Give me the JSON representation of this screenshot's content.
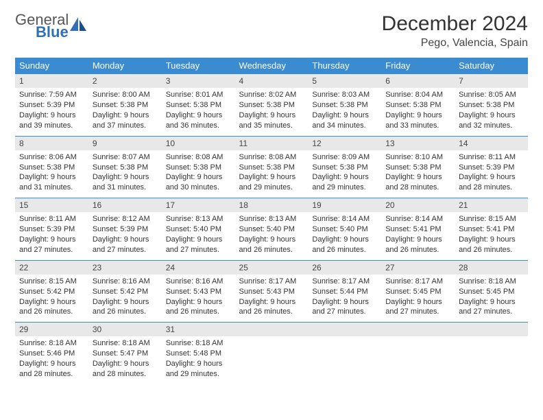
{
  "logo": {
    "general": "General",
    "blue": "Blue"
  },
  "title": "December 2024",
  "location": "Pego, Valencia, Spain",
  "colors": {
    "header_bg": "#3b8bd0",
    "header_text": "#ffffff",
    "daynum_bg": "#e8e8e8",
    "rule": "#3b8bd0",
    "logo_gray": "#555555",
    "logo_blue": "#3170b7",
    "body_text": "#333333"
  },
  "weekdays": [
    "Sunday",
    "Monday",
    "Tuesday",
    "Wednesday",
    "Thursday",
    "Friday",
    "Saturday"
  ],
  "weeks": [
    [
      {
        "n": "1",
        "sr": "Sunrise: 7:59 AM",
        "ss": "Sunset: 5:39 PM",
        "d1": "Daylight: 9 hours",
        "d2": "and 39 minutes."
      },
      {
        "n": "2",
        "sr": "Sunrise: 8:00 AM",
        "ss": "Sunset: 5:38 PM",
        "d1": "Daylight: 9 hours",
        "d2": "and 37 minutes."
      },
      {
        "n": "3",
        "sr": "Sunrise: 8:01 AM",
        "ss": "Sunset: 5:38 PM",
        "d1": "Daylight: 9 hours",
        "d2": "and 36 minutes."
      },
      {
        "n": "4",
        "sr": "Sunrise: 8:02 AM",
        "ss": "Sunset: 5:38 PM",
        "d1": "Daylight: 9 hours",
        "d2": "and 35 minutes."
      },
      {
        "n": "5",
        "sr": "Sunrise: 8:03 AM",
        "ss": "Sunset: 5:38 PM",
        "d1": "Daylight: 9 hours",
        "d2": "and 34 minutes."
      },
      {
        "n": "6",
        "sr": "Sunrise: 8:04 AM",
        "ss": "Sunset: 5:38 PM",
        "d1": "Daylight: 9 hours",
        "d2": "and 33 minutes."
      },
      {
        "n": "7",
        "sr": "Sunrise: 8:05 AM",
        "ss": "Sunset: 5:38 PM",
        "d1": "Daylight: 9 hours",
        "d2": "and 32 minutes."
      }
    ],
    [
      {
        "n": "8",
        "sr": "Sunrise: 8:06 AM",
        "ss": "Sunset: 5:38 PM",
        "d1": "Daylight: 9 hours",
        "d2": "and 31 minutes."
      },
      {
        "n": "9",
        "sr": "Sunrise: 8:07 AM",
        "ss": "Sunset: 5:38 PM",
        "d1": "Daylight: 9 hours",
        "d2": "and 31 minutes."
      },
      {
        "n": "10",
        "sr": "Sunrise: 8:08 AM",
        "ss": "Sunset: 5:38 PM",
        "d1": "Daylight: 9 hours",
        "d2": "and 30 minutes."
      },
      {
        "n": "11",
        "sr": "Sunrise: 8:08 AM",
        "ss": "Sunset: 5:38 PM",
        "d1": "Daylight: 9 hours",
        "d2": "and 29 minutes."
      },
      {
        "n": "12",
        "sr": "Sunrise: 8:09 AM",
        "ss": "Sunset: 5:38 PM",
        "d1": "Daylight: 9 hours",
        "d2": "and 29 minutes."
      },
      {
        "n": "13",
        "sr": "Sunrise: 8:10 AM",
        "ss": "Sunset: 5:38 PM",
        "d1": "Daylight: 9 hours",
        "d2": "and 28 minutes."
      },
      {
        "n": "14",
        "sr": "Sunrise: 8:11 AM",
        "ss": "Sunset: 5:39 PM",
        "d1": "Daylight: 9 hours",
        "d2": "and 28 minutes."
      }
    ],
    [
      {
        "n": "15",
        "sr": "Sunrise: 8:11 AM",
        "ss": "Sunset: 5:39 PM",
        "d1": "Daylight: 9 hours",
        "d2": "and 27 minutes."
      },
      {
        "n": "16",
        "sr": "Sunrise: 8:12 AM",
        "ss": "Sunset: 5:39 PM",
        "d1": "Daylight: 9 hours",
        "d2": "and 27 minutes."
      },
      {
        "n": "17",
        "sr": "Sunrise: 8:13 AM",
        "ss": "Sunset: 5:40 PM",
        "d1": "Daylight: 9 hours",
        "d2": "and 27 minutes."
      },
      {
        "n": "18",
        "sr": "Sunrise: 8:13 AM",
        "ss": "Sunset: 5:40 PM",
        "d1": "Daylight: 9 hours",
        "d2": "and 26 minutes."
      },
      {
        "n": "19",
        "sr": "Sunrise: 8:14 AM",
        "ss": "Sunset: 5:40 PM",
        "d1": "Daylight: 9 hours",
        "d2": "and 26 minutes."
      },
      {
        "n": "20",
        "sr": "Sunrise: 8:14 AM",
        "ss": "Sunset: 5:41 PM",
        "d1": "Daylight: 9 hours",
        "d2": "and 26 minutes."
      },
      {
        "n": "21",
        "sr": "Sunrise: 8:15 AM",
        "ss": "Sunset: 5:41 PM",
        "d1": "Daylight: 9 hours",
        "d2": "and 26 minutes."
      }
    ],
    [
      {
        "n": "22",
        "sr": "Sunrise: 8:15 AM",
        "ss": "Sunset: 5:42 PM",
        "d1": "Daylight: 9 hours",
        "d2": "and 26 minutes."
      },
      {
        "n": "23",
        "sr": "Sunrise: 8:16 AM",
        "ss": "Sunset: 5:42 PM",
        "d1": "Daylight: 9 hours",
        "d2": "and 26 minutes."
      },
      {
        "n": "24",
        "sr": "Sunrise: 8:16 AM",
        "ss": "Sunset: 5:43 PM",
        "d1": "Daylight: 9 hours",
        "d2": "and 26 minutes."
      },
      {
        "n": "25",
        "sr": "Sunrise: 8:17 AM",
        "ss": "Sunset: 5:43 PM",
        "d1": "Daylight: 9 hours",
        "d2": "and 26 minutes."
      },
      {
        "n": "26",
        "sr": "Sunrise: 8:17 AM",
        "ss": "Sunset: 5:44 PM",
        "d1": "Daylight: 9 hours",
        "d2": "and 27 minutes."
      },
      {
        "n": "27",
        "sr": "Sunrise: 8:17 AM",
        "ss": "Sunset: 5:45 PM",
        "d1": "Daylight: 9 hours",
        "d2": "and 27 minutes."
      },
      {
        "n": "28",
        "sr": "Sunrise: 8:18 AM",
        "ss": "Sunset: 5:45 PM",
        "d1": "Daylight: 9 hours",
        "d2": "and 27 minutes."
      }
    ],
    [
      {
        "n": "29",
        "sr": "Sunrise: 8:18 AM",
        "ss": "Sunset: 5:46 PM",
        "d1": "Daylight: 9 hours",
        "d2": "and 28 minutes."
      },
      {
        "n": "30",
        "sr": "Sunrise: 8:18 AM",
        "ss": "Sunset: 5:47 PM",
        "d1": "Daylight: 9 hours",
        "d2": "and 28 minutes."
      },
      {
        "n": "31",
        "sr": "Sunrise: 8:18 AM",
        "ss": "Sunset: 5:48 PM",
        "d1": "Daylight: 9 hours",
        "d2": "and 29 minutes."
      },
      null,
      null,
      null,
      null
    ]
  ]
}
